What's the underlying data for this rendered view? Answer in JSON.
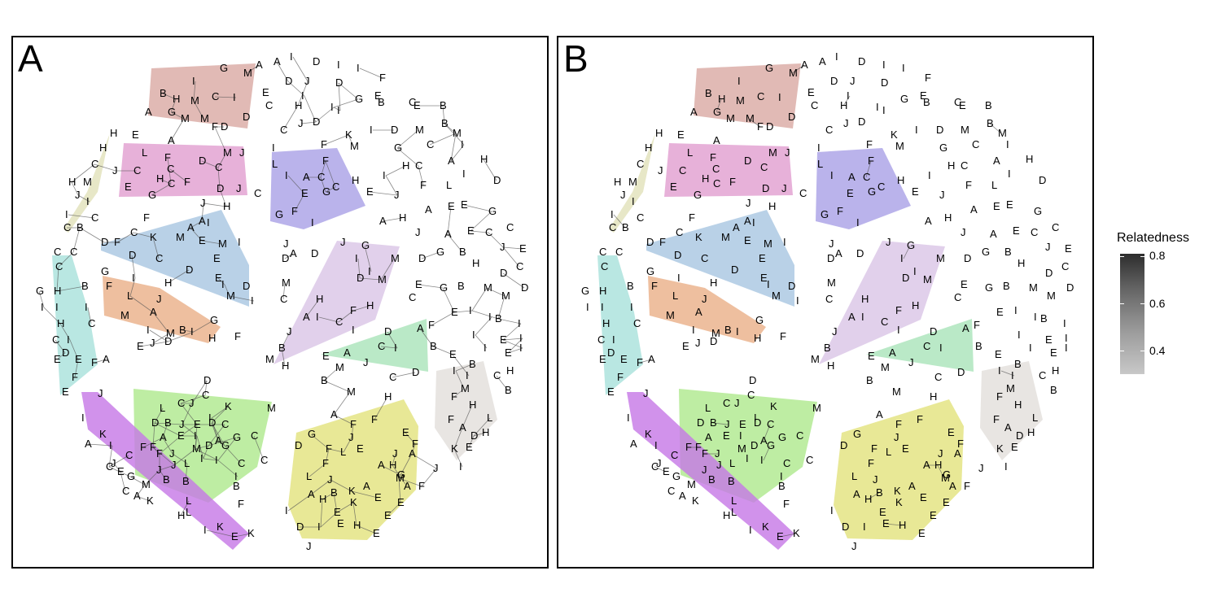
{
  "panels": [
    {
      "id": "A",
      "label": "A"
    },
    {
      "id": "B",
      "label": "B"
    }
  ],
  "legend": {
    "title": "Relatedness",
    "ticks": [
      "0.8",
      "0.6",
      "0.4"
    ]
  },
  "colors": {
    "cluster_red": "#d9a9a3",
    "cluster_pink": "#e19ed0",
    "cluster_purple": "#a9a0e6",
    "cluster_olive": "#e1e1b9",
    "cluster_blue": "#a7c5e1",
    "cluster_cyan": "#a8e1db",
    "cluster_orange": "#eaaf87",
    "cluster_lavender": "#d9c4e6",
    "cluster_mint": "#a9e4b9",
    "cluster_gray": "#e2dfdb",
    "cluster_green": "#aee88c",
    "cluster_yellow": "#e2e27c",
    "cluster_magenta": "#c677e6",
    "edge": "#555555"
  }
}
